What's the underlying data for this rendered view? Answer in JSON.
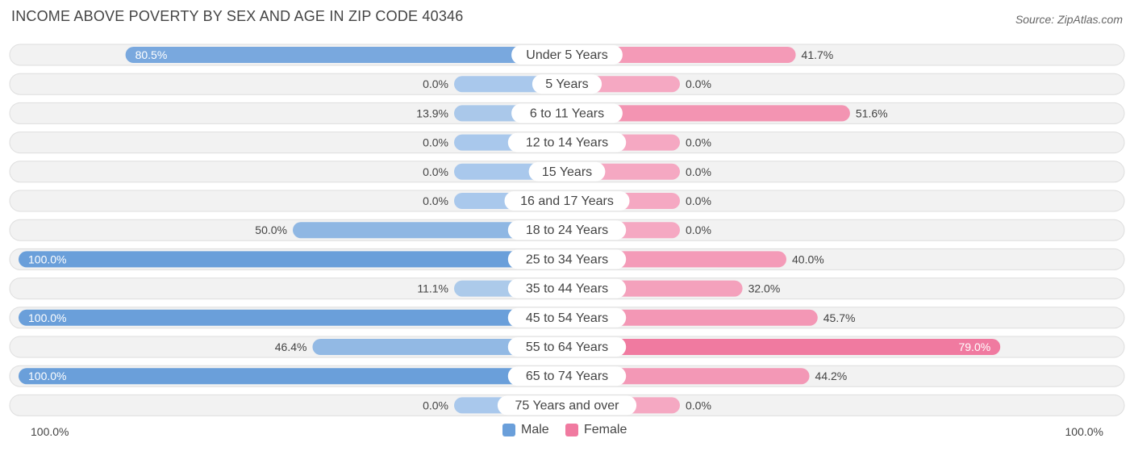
{
  "title": "INCOME ABOVE POVERTY BY SEX AND AGE IN ZIP CODE 40346",
  "source": "Source: ZipAtlas.com",
  "colors": {
    "male": "#6a9fda",
    "male_light": "#a9c8ec",
    "female": "#f07aa0",
    "female_light": "#f5a8c2",
    "track": "#f0f0f0"
  },
  "legend": {
    "male": "Male",
    "female": "Female"
  },
  "axis": {
    "left": "100.0%",
    "right": "100.0%"
  },
  "chart_data": {
    "type": "bar",
    "orientation": "diverging-horizontal",
    "xlim": [
      -100,
      100
    ],
    "categories": [
      "Under 5 Years",
      "5 Years",
      "6 to 11 Years",
      "12 to 14 Years",
      "15 Years",
      "16 and 17 Years",
      "18 to 24 Years",
      "25 to 34 Years",
      "35 to 44 Years",
      "45 to 54 Years",
      "55 to 64 Years",
      "65 to 74 Years",
      "75 Years and over"
    ],
    "series": [
      {
        "name": "Male",
        "values": [
          80.5,
          0.0,
          13.9,
          0.0,
          0.0,
          0.0,
          50.0,
          100.0,
          11.1,
          100.0,
          46.4,
          100.0,
          0.0
        ],
        "labels": [
          "80.5%",
          "0.0%",
          "13.9%",
          "0.0%",
          "0.0%",
          "0.0%",
          "50.0%",
          "100.0%",
          "11.1%",
          "100.0%",
          "46.4%",
          "100.0%",
          "0.0%"
        ]
      },
      {
        "name": "Female",
        "values": [
          41.7,
          0.0,
          51.6,
          0.0,
          0.0,
          0.0,
          0.0,
          40.0,
          32.0,
          45.7,
          79.0,
          44.2,
          0.0
        ],
        "labels": [
          "41.7%",
          "0.0%",
          "51.6%",
          "0.0%",
          "0.0%",
          "0.0%",
          "0.0%",
          "40.0%",
          "32.0%",
          "45.7%",
          "79.0%",
          "44.2%",
          "0.0%"
        ]
      }
    ],
    "legend_position": "bottom-center"
  }
}
